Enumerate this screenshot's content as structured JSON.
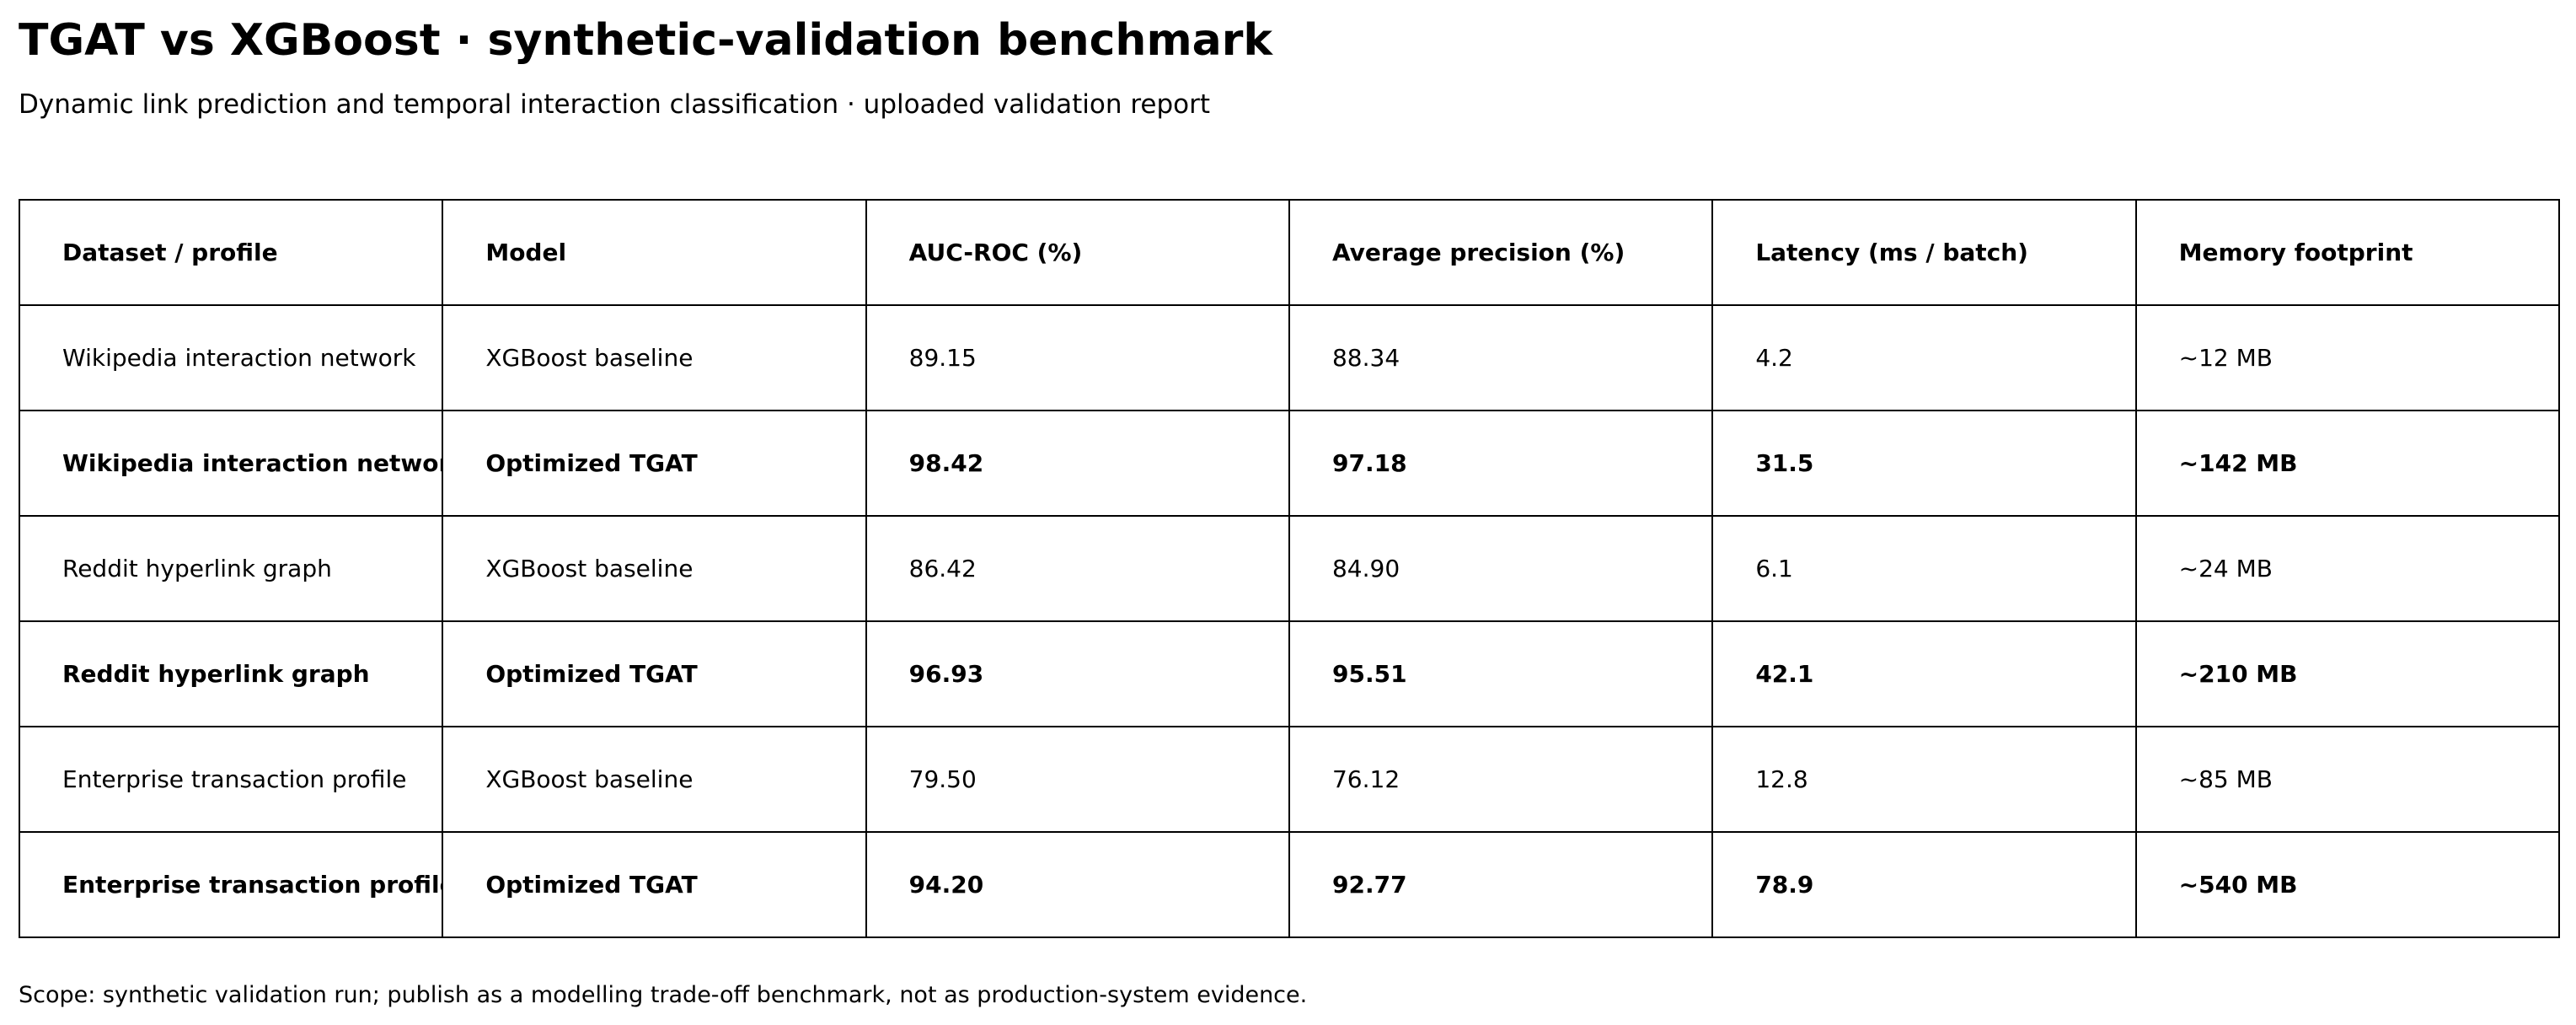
{
  "title": "TGAT vs XGBoost · synthetic-validation benchmark",
  "subtitle": "Dynamic link prediction and temporal interaction classification · uploaded validation report",
  "table": {
    "headers": [
      "Dataset / profile",
      "Model",
      "AUC-ROC (%)",
      "Average precision (%)",
      "Latency (ms / batch)",
      "Memory footprint"
    ],
    "rows": [
      {
        "bold": false,
        "cells": [
          "Wikipedia interaction network",
          "XGBoost baseline",
          "89.15",
          "88.34",
          "4.2",
          "~12 MB"
        ]
      },
      {
        "bold": true,
        "cells": [
          "Wikipedia interaction network",
          "Optimized TGAT",
          "98.42",
          "97.18",
          "31.5",
          "~142 MB"
        ]
      },
      {
        "bold": false,
        "cells": [
          "Reddit hyperlink graph",
          "XGBoost baseline",
          "86.42",
          "84.90",
          "6.1",
          "~24 MB"
        ]
      },
      {
        "bold": true,
        "cells": [
          "Reddit hyperlink graph",
          "Optimized TGAT",
          "96.93",
          "95.51",
          "42.1",
          "~210 MB"
        ]
      },
      {
        "bold": false,
        "cells": [
          "Enterprise transaction profile",
          "XGBoost baseline",
          "79.50",
          "76.12",
          "12.8",
          "~85 MB"
        ]
      },
      {
        "bold": true,
        "cells": [
          "Enterprise transaction profile",
          "Optimized TGAT",
          "94.20",
          "92.77",
          "78.9",
          "~540 MB"
        ]
      }
    ]
  },
  "footnote": "Scope: synthetic validation run; publish as a modelling trade-off benchmark, not as production-system evidence."
}
